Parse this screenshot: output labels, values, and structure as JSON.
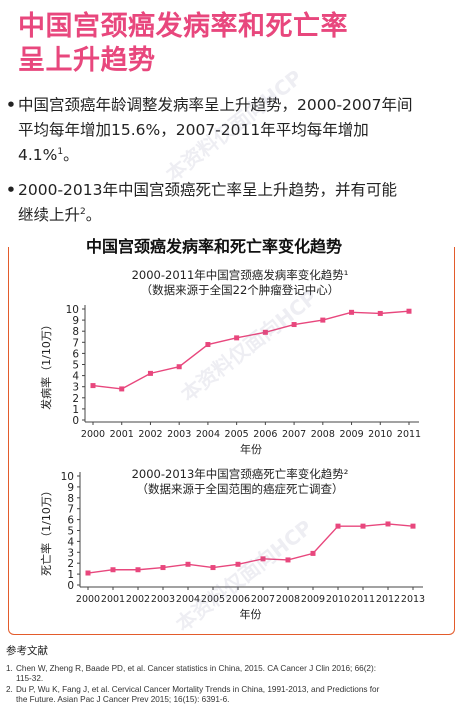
{
  "header": {
    "title_line1": "中国宫颈癌发病率和死亡率",
    "title_line2": "呈上升趋势"
  },
  "bullets": [
    {
      "dot": "•",
      "text_line1": "中国宫颈癌年龄调整发病率呈上升趋势，2000-2007年间",
      "text_line2": "平均每年增加15.6%，2007-2011年平均每年增加",
      "text_line3": "4.1%",
      "ref": "1",
      "tail": "。"
    },
    {
      "dot": "•",
      "text_line1": "2000-2013年中国宫颈癌死亡率呈上升趋势，并有可能",
      "text_line2": "继续上升",
      "ref": "2",
      "tail": "。"
    }
  ],
  "section": {
    "title": "中国宫颈癌发病率和死亡率变化趋势"
  },
  "colors": {
    "accent": "#e8477d",
    "frame": "#e35b2b",
    "series": "#e8477d"
  },
  "chart_data": [
    {
      "type": "line",
      "title_line1": "2000-2011年中国宫颈癌发病率变化趋势¹",
      "title_line2": "（数据来源于全国22个肿瘤登记中心）",
      "xlabel": "年份",
      "ylabel": "发病率（1/10万）",
      "x": [
        2000,
        2001,
        2002,
        2003,
        2004,
        2005,
        2006,
        2007,
        2008,
        2009,
        2010,
        2011
      ],
      "y": [
        3.1,
        2.8,
        4.2,
        4.8,
        6.8,
        7.4,
        7.9,
        8.6,
        9.0,
        9.7,
        9.6,
        9.8
      ],
      "ylim": [
        0,
        10
      ],
      "yticks": [
        0,
        1,
        2,
        3,
        4,
        5,
        6,
        7,
        8,
        9,
        10
      ],
      "grid": false
    },
    {
      "type": "line",
      "title_line1": "2000-2013年中国宫颈癌死亡率变化趋势²",
      "title_line2": "（数据来源于全国范围的癌症死亡调查）",
      "xlabel": "年份",
      "ylabel": "死亡率（1/10万）",
      "x": [
        2000,
        2001,
        2002,
        2003,
        2004,
        2005,
        2006,
        2007,
        2008,
        2009,
        2010,
        2011,
        2012,
        2013
      ],
      "y": [
        1.1,
        1.4,
        1.4,
        1.6,
        1.9,
        1.6,
        1.9,
        2.4,
        2.3,
        2.9,
        5.4,
        5.4,
        5.6,
        5.4
      ],
      "ylim": [
        0,
        10
      ],
      "yticks": [
        0,
        1,
        2,
        3,
        4,
        5,
        6,
        7,
        8,
        9,
        10
      ],
      "grid": false
    }
  ],
  "references": {
    "title": "参考文献",
    "items": [
      {
        "num": "1.",
        "line1": "Chen W, Zheng R, Baade PD, et al. Cancer statistics in China, 2015. CA Cancer J Clin 2016; 66(2):",
        "line2": "115-32."
      },
      {
        "num": "2.",
        "line1": "Du P, Wu K, Fang J, et al. Cervical Cancer Mortality Trends in China, 1991-2013, and Predictions for",
        "line2": "the Future. Asian Pac J Cancer Prev 2015; 16(15): 6391-6."
      }
    ]
  },
  "watermark": {
    "text": "本资料仅面向HCP"
  }
}
